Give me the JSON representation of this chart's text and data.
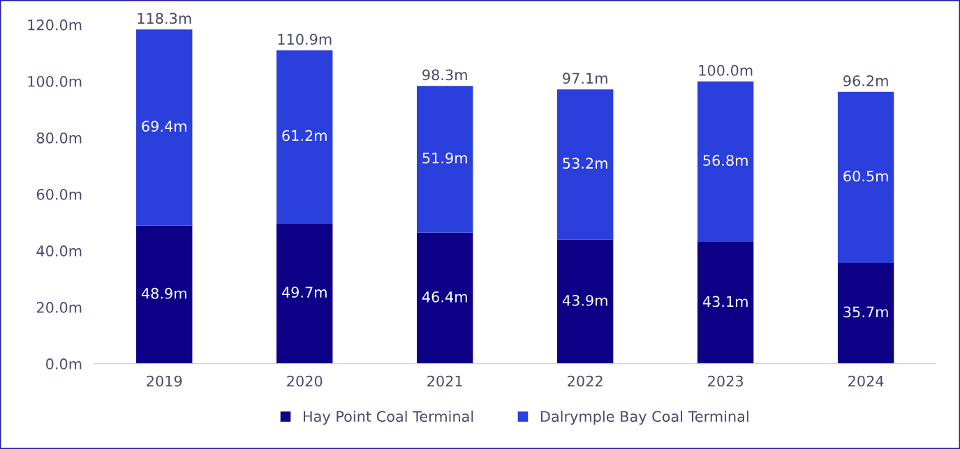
{
  "chart_data": {
    "type": "bar",
    "stacked": true,
    "categories": [
      "2019",
      "2020",
      "2021",
      "2022",
      "2023",
      "2024"
    ],
    "series": [
      {
        "name": "Hay Point Coal Terminal",
        "color": "#0d0087",
        "values": [
          48.9,
          49.7,
          46.4,
          43.9,
          43.1,
          35.7
        ],
        "value_labels": [
          "48.9m",
          "49.7m",
          "46.4m",
          "43.9m",
          "43.1m",
          "35.7m"
        ]
      },
      {
        "name": "Dalrymple Bay Coal Terminal",
        "color": "#2b3fdc",
        "values": [
          69.4,
          61.2,
          51.9,
          53.2,
          56.8,
          60.5
        ],
        "value_labels": [
          "69.4m",
          "61.2m",
          "51.9m",
          "53.2m",
          "56.8m",
          "60.5m"
        ]
      }
    ],
    "totals": [
      "118.3m",
      "110.9m",
      "98.3m",
      "97.1m",
      "100.0m",
      "96.2m"
    ],
    "ylim": [
      0,
      120
    ],
    "yticks": [
      {
        "value": 0,
        "label": "0.0m"
      },
      {
        "value": 20,
        "label": "20.0m"
      },
      {
        "value": 40,
        "label": "40.0m"
      },
      {
        "value": 60,
        "label": "60.0m"
      },
      {
        "value": 80,
        "label": "80.0m"
      },
      {
        "value": 100,
        "label": "100.0m"
      },
      {
        "value": 120,
        "label": "120.0m"
      }
    ],
    "grid": false,
    "legend": "bottom"
  }
}
